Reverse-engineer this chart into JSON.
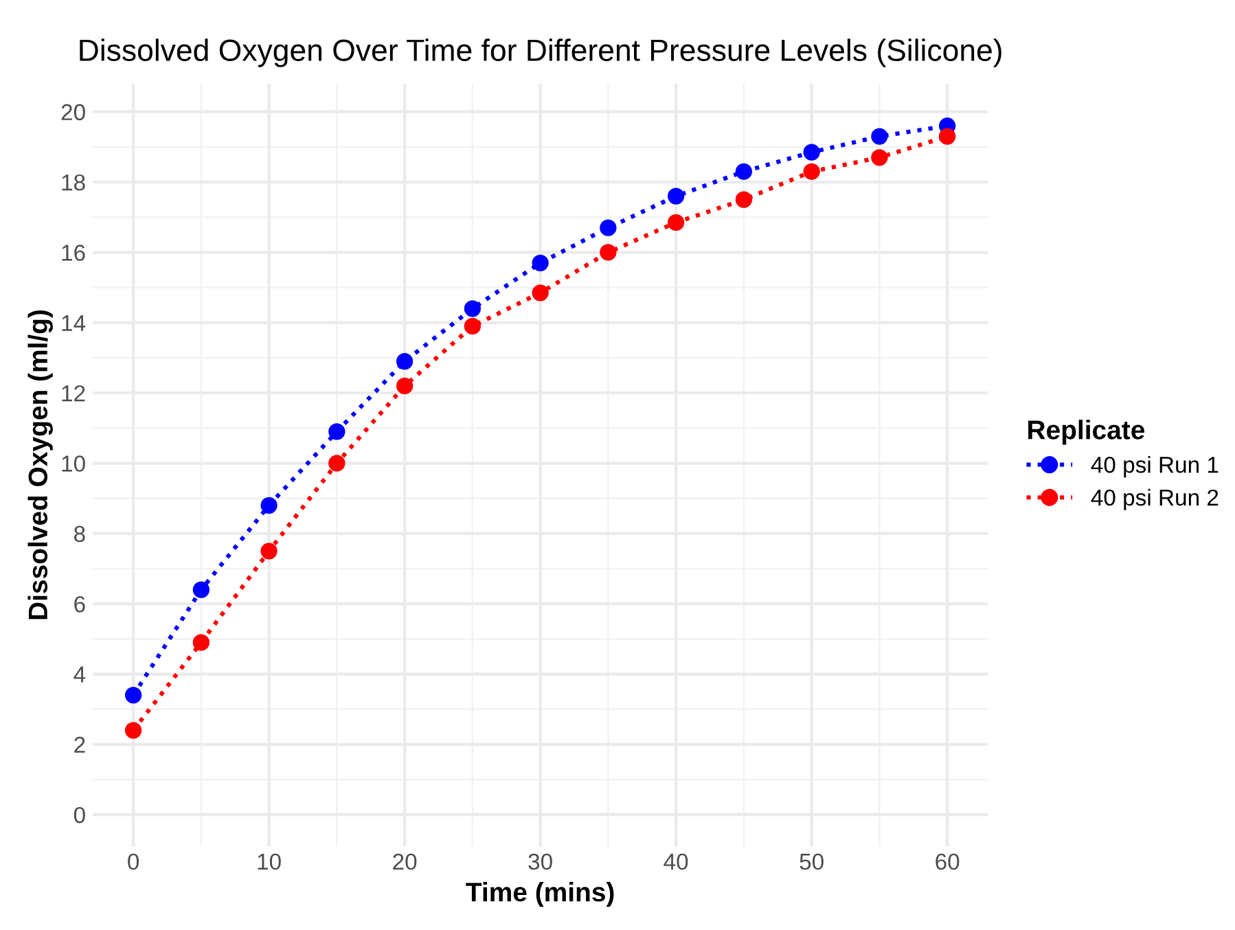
{
  "chart_data": {
    "type": "line",
    "title": "Dissolved Oxygen Over Time for Different Pressure Levels (Silicone)",
    "xlabel": "Time (mins)",
    "ylabel": "Dissolved Oxygen (ml/g)",
    "legend_title": "Replicate",
    "x": [
      0,
      5,
      10,
      15,
      20,
      25,
      30,
      35,
      40,
      45,
      50,
      55,
      60
    ],
    "series": [
      {
        "name": "40 psi Run 1",
        "color": "#0000ff",
        "values": [
          3.4,
          6.4,
          8.8,
          10.9,
          12.9,
          14.4,
          15.7,
          16.7,
          17.6,
          18.3,
          18.85,
          19.3,
          19.6
        ]
      },
      {
        "name": "40 psi Run 2",
        "color": "#ff0000",
        "values": [
          2.4,
          4.9,
          7.5,
          10.0,
          12.2,
          13.9,
          14.85,
          16.0,
          16.85,
          17.5,
          18.3,
          18.7,
          19.3
        ]
      }
    ],
    "xlim": [
      -3,
      63
    ],
    "ylim": [
      -0.9,
      20.8
    ],
    "xticks": [
      0,
      10,
      20,
      30,
      40,
      50,
      60
    ],
    "yticks": [
      0,
      2,
      4,
      6,
      8,
      10,
      12,
      14,
      16,
      18,
      20
    ],
    "grid": true,
    "legend": "right",
    "marker": "circle",
    "line_style": "dotted"
  }
}
